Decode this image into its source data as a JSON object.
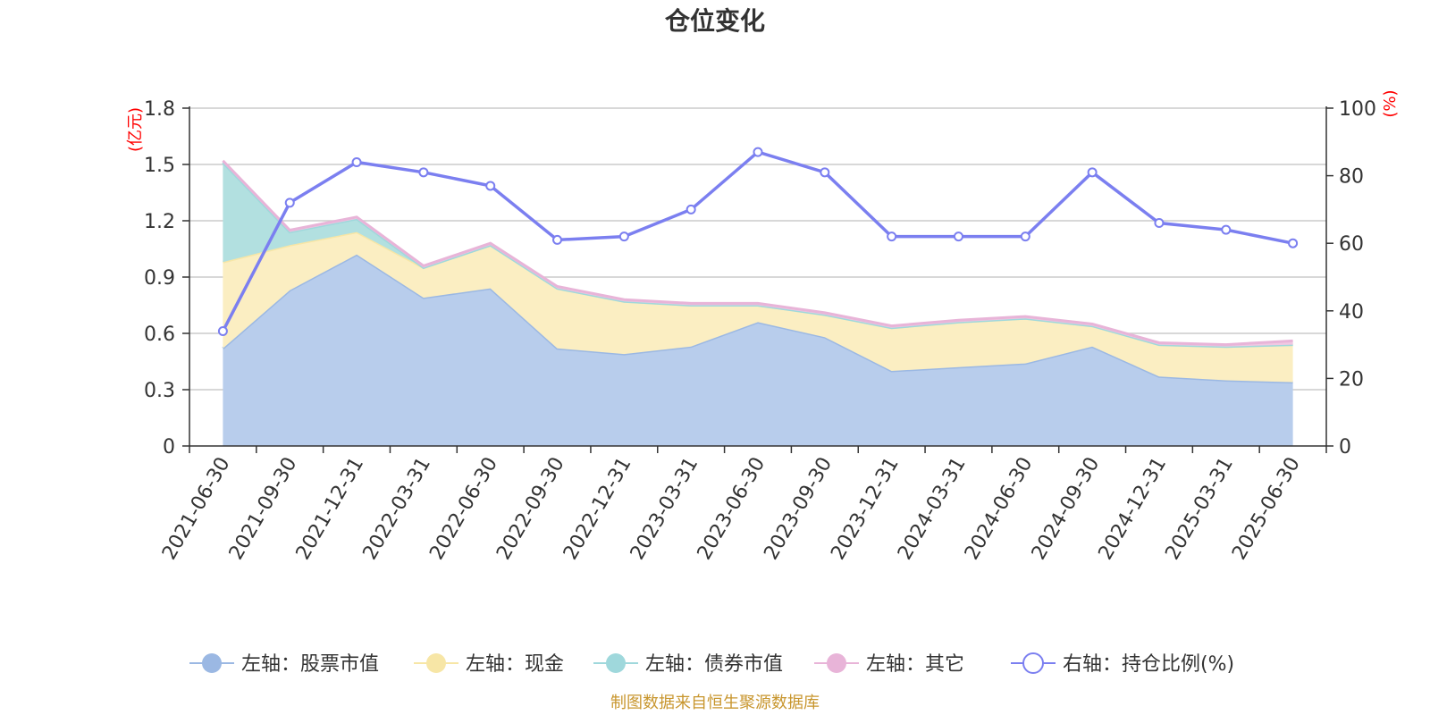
{
  "chart_data": {
    "type": "area",
    "title": "仓位变化",
    "categories": [
      "2021-06-30",
      "2021-09-30",
      "2021-12-31",
      "2022-03-31",
      "2022-06-30",
      "2022-09-30",
      "2022-12-31",
      "2023-03-31",
      "2023-06-30",
      "2023-09-30",
      "2023-12-31",
      "2024-03-31",
      "2024-06-30",
      "2024-09-30",
      "2024-12-31",
      "2025-03-31",
      "2025-06-30"
    ],
    "left_axis": {
      "unit": "(亿元)",
      "ylim": [
        0,
        1.8
      ],
      "ticks": [
        "0",
        "0.3",
        "0.6",
        "0.9",
        "1.2",
        "1.5",
        "1.8"
      ]
    },
    "right_axis": {
      "unit": "(%)",
      "ylim": [
        0,
        100
      ],
      "ticks": [
        "0",
        "20",
        "40",
        "60",
        "80",
        "100"
      ]
    },
    "series": [
      {
        "name": "左轴：股票市值",
        "axis": "left",
        "stack": true,
        "color": "#9bb8e3",
        "fill": "#b8cdec",
        "values": [
          0.52,
          0.83,
          1.02,
          0.79,
          0.84,
          0.52,
          0.49,
          0.53,
          0.66,
          0.58,
          0.4,
          0.42,
          0.44,
          0.53,
          0.37,
          0.35,
          0.34
        ]
      },
      {
        "name": "左轴：现金",
        "axis": "left",
        "stack": true,
        "color": "#f7e6a6",
        "fill": "#fbeec2",
        "values": [
          0.46,
          0.24,
          0.12,
          0.16,
          0.23,
          0.32,
          0.28,
          0.22,
          0.09,
          0.12,
          0.23,
          0.24,
          0.24,
          0.11,
          0.17,
          0.18,
          0.2
        ]
      },
      {
        "name": "左轴：债券市值",
        "axis": "left",
        "stack": true,
        "color": "#9fd8dc",
        "fill": "#b2e0e0",
        "values": [
          0.53,
          0.07,
          0.07,
          0.0,
          0.0,
          0.0,
          0.0,
          0.0,
          0.0,
          0.0,
          0.0,
          0.0,
          0.0,
          0.0,
          0.0,
          0.0,
          0.0
        ]
      },
      {
        "name": "左轴：其它",
        "axis": "left",
        "stack": true,
        "color": "#e8b4d8",
        "fill": "#f0c8e2",
        "values": [
          0.01,
          0.01,
          0.01,
          0.01,
          0.01,
          0.01,
          0.01,
          0.01,
          0.01,
          0.01,
          0.01,
          0.01,
          0.01,
          0.01,
          0.01,
          0.01,
          0.02
        ]
      },
      {
        "name": "右轴：持仓比例(%)",
        "axis": "right",
        "stack": false,
        "color": "#7b7ff0",
        "values": [
          34,
          72,
          84,
          81,
          77,
          61,
          62,
          70,
          87,
          81,
          62,
          62,
          62,
          81,
          66,
          64,
          60
        ]
      }
    ],
    "grid": true,
    "legend_position": "bottom"
  },
  "source": "制图数据来自恒生聚源数据库"
}
